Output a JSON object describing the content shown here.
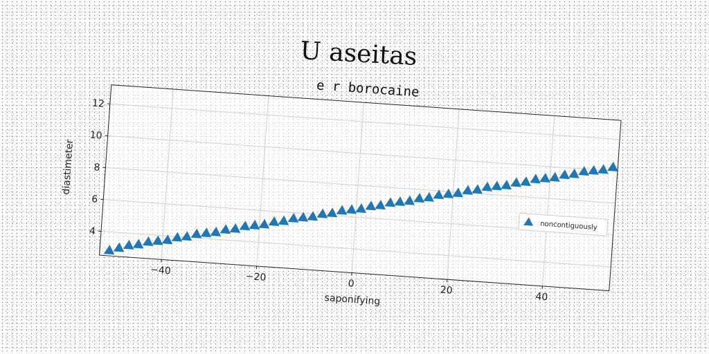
{
  "figure": {
    "title": "U aseitas"
  },
  "chart_data": {
    "type": "scatter",
    "title": "e r borocaine",
    "xlabel": "saponifying",
    "ylabel": "diastimeter",
    "xlim": [
      -53,
      54
    ],
    "ylim": [
      2.5,
      13.2
    ],
    "xticks": [
      -40,
      -20,
      0,
      20,
      40
    ],
    "yticks": [
      4,
      6,
      8,
      10,
      12
    ],
    "grid": true,
    "legend_position": "center-right",
    "series": [
      {
        "name": "noncontiguously",
        "marker": "triangle-up",
        "color": "#1f77b4",
        "x": [
          -51,
          -49,
          -47,
          -45,
          -43,
          -41,
          -39,
          -37,
          -35,
          -33,
          -31,
          -29,
          -27,
          -25,
          -23,
          -21,
          -19,
          -17,
          -15,
          -13,
          -11,
          -9,
          -7,
          -5,
          -3,
          -1,
          1,
          3,
          5,
          7,
          9,
          11,
          13,
          15,
          17,
          19,
          21,
          23,
          25,
          27,
          29,
          31,
          33,
          35,
          37,
          39,
          41,
          43,
          45,
          47,
          49,
          51,
          53
        ],
        "y": [
          2.8,
          3.0,
          3.2,
          3.3,
          3.5,
          3.6,
          3.7,
          3.9,
          4.0,
          4.2,
          4.3,
          4.4,
          4.6,
          4.7,
          4.9,
          5.0,
          5.1,
          5.3,
          5.4,
          5.6,
          5.7,
          5.8,
          6.0,
          6.1,
          6.3,
          6.4,
          6.5,
          6.7,
          6.8,
          7.0,
          7.1,
          7.2,
          7.4,
          7.5,
          7.7,
          7.8,
          7.9,
          8.1,
          8.2,
          8.4,
          8.5,
          8.6,
          8.8,
          8.9,
          9.1,
          9.2,
          9.3,
          9.5,
          9.6,
          9.8,
          9.9,
          10.0,
          10.2
        ]
      }
    ]
  }
}
